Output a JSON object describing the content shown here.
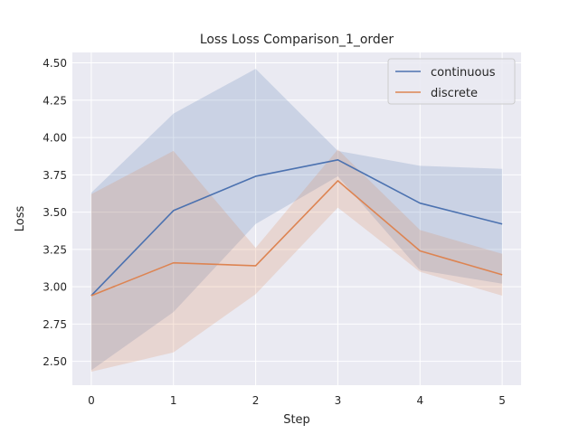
{
  "chart_data": {
    "type": "line",
    "title": "Loss Loss Comparison_1_order",
    "xlabel": "Step",
    "ylabel": "Loss",
    "x": [
      0,
      1,
      2,
      3,
      4,
      5
    ],
    "xlim": [
      -0.23,
      5.23
    ],
    "ylim": [
      2.34,
      4.57
    ],
    "yticks": [
      2.5,
      2.75,
      3.0,
      3.25,
      3.5,
      3.75,
      4.0,
      4.25,
      4.5
    ],
    "ytick_labels": [
      "2.50",
      "2.75",
      "3.00",
      "3.25",
      "3.50",
      "3.75",
      "4.00",
      "4.25",
      "4.50"
    ],
    "xticks": [
      0,
      1,
      2,
      3,
      4,
      5
    ],
    "xtick_labels": [
      "0",
      "1",
      "2",
      "3",
      "4",
      "5"
    ],
    "grid": true,
    "legend_position": "top-right",
    "series": [
      {
        "name": "continuous",
        "color": "#4c72b0",
        "values": [
          2.94,
          3.51,
          3.74,
          3.85,
          3.56,
          3.42
        ],
        "band_lower": [
          2.44,
          2.83,
          3.42,
          3.74,
          3.11,
          3.02
        ],
        "band_upper": [
          3.63,
          4.16,
          4.46,
          3.91,
          3.81,
          3.79
        ]
      },
      {
        "name": "discrete",
        "color": "#dd8452",
        "values": [
          2.94,
          3.16,
          3.14,
          3.71,
          3.24,
          3.08
        ],
        "band_lower": [
          2.43,
          2.56,
          2.95,
          3.53,
          3.1,
          2.94
        ],
        "band_upper": [
          3.62,
          3.91,
          3.26,
          3.92,
          3.38,
          3.22
        ]
      }
    ]
  }
}
